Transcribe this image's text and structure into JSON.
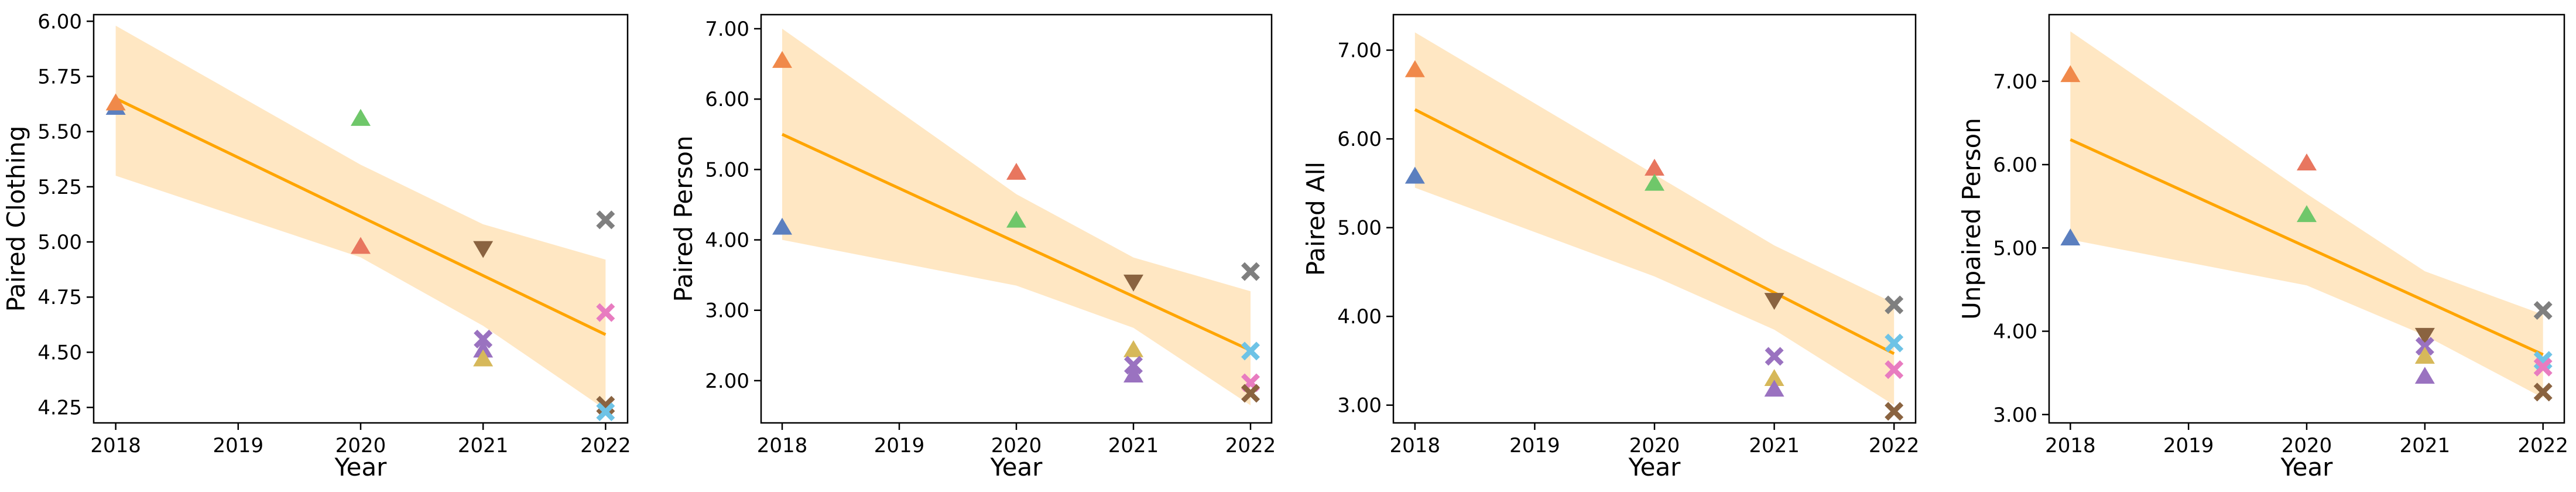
{
  "chart_data": [
    {
      "type": "scatter",
      "title": "",
      "xlabel": "Year",
      "ylabel": "Paired Clothing",
      "xlim": [
        2017.82,
        2022.18
      ],
      "ylim": [
        4.18,
        6.03
      ],
      "xticks": [
        "2018",
        "2019",
        "2020",
        "2021",
        "2022"
      ],
      "yticks": [
        "4.25",
        "4.50",
        "4.75",
        "5.00",
        "5.25",
        "5.50",
        "5.75",
        "6.00"
      ],
      "ytick_values": [
        4.25,
        4.5,
        4.75,
        5.0,
        5.25,
        5.5,
        5.75,
        6.0
      ],
      "trend_line": {
        "x": [
          2018,
          2022
        ],
        "y": [
          5.65,
          4.58
        ]
      },
      "confidence_band": {
        "x": [
          2018,
          2020,
          2021,
          2022
        ],
        "upper": [
          5.98,
          5.35,
          5.08,
          4.92
        ],
        "lower": [
          5.3,
          4.93,
          4.62,
          4.24
        ]
      },
      "points": [
        {
          "x": 2018,
          "y": 5.61,
          "marker": "triangle-up",
          "color": "#5b7fbf"
        },
        {
          "x": 2018,
          "y": 5.63,
          "marker": "triangle-up",
          "color": "#f0894a"
        },
        {
          "x": 2020,
          "y": 5.56,
          "marker": "triangle-up",
          "color": "#6fc76a"
        },
        {
          "x": 2020,
          "y": 4.98,
          "marker": "triangle-up",
          "color": "#e8765f"
        },
        {
          "x": 2021,
          "y": 4.97,
          "marker": "triangle-down",
          "color": "#8a6340"
        },
        {
          "x": 2021,
          "y": 4.56,
          "marker": "x",
          "color": "#9a72c0"
        },
        {
          "x": 2021,
          "y": 4.51,
          "marker": "triangle-up",
          "color": "#9a72c0"
        },
        {
          "x": 2021,
          "y": 4.47,
          "marker": "triangle-up",
          "color": "#d6b85a"
        },
        {
          "x": 2022,
          "y": 5.1,
          "marker": "x",
          "color": "#7f7f7f"
        },
        {
          "x": 2022,
          "y": 4.68,
          "marker": "x",
          "color": "#e87cc0"
        },
        {
          "x": 2022,
          "y": 4.26,
          "marker": "x",
          "color": "#8a6340"
        },
        {
          "x": 2022,
          "y": 4.23,
          "marker": "x",
          "color": "#6ec3e6"
        }
      ]
    },
    {
      "type": "scatter",
      "title": "",
      "xlabel": "Year",
      "ylabel": "Paired Person",
      "xlim": [
        2017.82,
        2022.18
      ],
      "ylim": [
        1.4,
        7.2
      ],
      "xticks": [
        "2018",
        "2019",
        "2020",
        "2021",
        "2022"
      ],
      "yticks": [
        "2.00",
        "3.00",
        "4.00",
        "5.00",
        "6.00",
        "7.00"
      ],
      "ytick_values": [
        2,
        3,
        4,
        5,
        6,
        7
      ],
      "trend_line": {
        "x": [
          2018,
          2022
        ],
        "y": [
          5.5,
          2.43
        ]
      },
      "confidence_band": {
        "x": [
          2018,
          2020,
          2021,
          2022
        ],
        "upper": [
          7.0,
          4.65,
          3.75,
          3.27
        ],
        "lower": [
          4.0,
          3.35,
          2.75,
          1.65
        ]
      },
      "points": [
        {
          "x": 2018,
          "y": 6.55,
          "marker": "triangle-up",
          "color": "#f0894a"
        },
        {
          "x": 2018,
          "y": 4.18,
          "marker": "triangle-up",
          "color": "#5b7fbf"
        },
        {
          "x": 2020,
          "y": 4.96,
          "marker": "triangle-up",
          "color": "#e8765f"
        },
        {
          "x": 2020,
          "y": 4.28,
          "marker": "triangle-up",
          "color": "#6fc76a"
        },
        {
          "x": 2021,
          "y": 3.4,
          "marker": "triangle-down",
          "color": "#8a6340"
        },
        {
          "x": 2021,
          "y": 2.44,
          "marker": "triangle-up",
          "color": "#d6b85a"
        },
        {
          "x": 2021,
          "y": 2.22,
          "marker": "x",
          "color": "#9a72c0"
        },
        {
          "x": 2021,
          "y": 2.08,
          "marker": "triangle-up",
          "color": "#9a72c0"
        },
        {
          "x": 2022,
          "y": 3.55,
          "marker": "x",
          "color": "#7f7f7f"
        },
        {
          "x": 2022,
          "y": 2.42,
          "marker": "x",
          "color": "#6ec3e6"
        },
        {
          "x": 2022,
          "y": 1.97,
          "marker": "x",
          "color": "#e87cc0"
        },
        {
          "x": 2022,
          "y": 1.82,
          "marker": "x",
          "color": "#8a6340"
        }
      ]
    },
    {
      "type": "scatter",
      "title": "",
      "xlabel": "Year",
      "ylabel": "Paired All",
      "xlim": [
        2017.82,
        2022.18
      ],
      "ylim": [
        2.8,
        7.4
      ],
      "xticks": [
        "2018",
        "2019",
        "2020",
        "2021",
        "2022"
      ],
      "yticks": [
        "3.00",
        "4.00",
        "5.00",
        "6.00",
        "7.00"
      ],
      "ytick_values": [
        3,
        4,
        5,
        6,
        7
      ],
      "trend_line": {
        "x": [
          2018,
          2022
        ],
        "y": [
          6.33,
          3.58
        ]
      },
      "confidence_band": {
        "x": [
          2018,
          2020,
          2021,
          2022
        ],
        "upper": [
          7.2,
          5.6,
          4.8,
          4.15
        ],
        "lower": [
          5.45,
          4.45,
          3.85,
          3.0
        ]
      },
      "points": [
        {
          "x": 2018,
          "y": 6.78,
          "marker": "triangle-up",
          "color": "#f0894a"
        },
        {
          "x": 2018,
          "y": 5.58,
          "marker": "triangle-up",
          "color": "#5b7fbf"
        },
        {
          "x": 2020,
          "y": 5.67,
          "marker": "triangle-up",
          "color": "#e8765f"
        },
        {
          "x": 2020,
          "y": 5.5,
          "marker": "triangle-up",
          "color": "#6fc76a"
        },
        {
          "x": 2021,
          "y": 4.18,
          "marker": "triangle-down",
          "color": "#8a6340"
        },
        {
          "x": 2021,
          "y": 3.55,
          "marker": "x",
          "color": "#9a72c0"
        },
        {
          "x": 2021,
          "y": 3.3,
          "marker": "triangle-up",
          "color": "#d6b85a"
        },
        {
          "x": 2021,
          "y": 3.18,
          "marker": "triangle-up",
          "color": "#9a72c0"
        },
        {
          "x": 2022,
          "y": 4.13,
          "marker": "x",
          "color": "#7f7f7f"
        },
        {
          "x": 2022,
          "y": 3.7,
          "marker": "x",
          "color": "#6ec3e6"
        },
        {
          "x": 2022,
          "y": 3.4,
          "marker": "x",
          "color": "#e87cc0"
        },
        {
          "x": 2022,
          "y": 2.93,
          "marker": "x",
          "color": "#8a6340"
        }
      ]
    },
    {
      "type": "scatter",
      "title": "",
      "xlabel": "Year",
      "ylabel": "Unpaired Person",
      "xlim": [
        2017.82,
        2022.18
      ],
      "ylim": [
        2.9,
        7.8
      ],
      "xticks": [
        "2018",
        "2019",
        "2020",
        "2021",
        "2022"
      ],
      "yticks": [
        "3.00",
        "4.00",
        "5.00",
        "6.00",
        "7.00"
      ],
      "ytick_values": [
        3,
        4,
        5,
        6,
        7
      ],
      "trend_line": {
        "x": [
          2018,
          2022
        ],
        "y": [
          6.3,
          3.72
        ]
      },
      "confidence_band": {
        "x": [
          2018,
          2020,
          2021,
          2022
        ],
        "upper": [
          7.6,
          5.65,
          4.72,
          4.2
        ],
        "lower": [
          5.1,
          4.55,
          3.95,
          3.2
        ]
      },
      "points": [
        {
          "x": 2018,
          "y": 7.08,
          "marker": "triangle-up",
          "color": "#f0894a"
        },
        {
          "x": 2018,
          "y": 5.12,
          "marker": "triangle-up",
          "color": "#5b7fbf"
        },
        {
          "x": 2020,
          "y": 6.02,
          "marker": "triangle-up",
          "color": "#e8765f"
        },
        {
          "x": 2020,
          "y": 5.4,
          "marker": "triangle-up",
          "color": "#6fc76a"
        },
        {
          "x": 2021,
          "y": 3.95,
          "marker": "triangle-down",
          "color": "#8a6340"
        },
        {
          "x": 2021,
          "y": 3.82,
          "marker": "x",
          "color": "#9a72c0"
        },
        {
          "x": 2021,
          "y": 3.7,
          "marker": "triangle-up",
          "color": "#d6b85a"
        },
        {
          "x": 2021,
          "y": 3.46,
          "marker": "triangle-up",
          "color": "#9a72c0"
        },
        {
          "x": 2022,
          "y": 4.25,
          "marker": "x",
          "color": "#7f7f7f"
        },
        {
          "x": 2022,
          "y": 3.65,
          "marker": "x",
          "color": "#6ec3e6"
        },
        {
          "x": 2022,
          "y": 3.57,
          "marker": "x",
          "color": "#e87cc0"
        },
        {
          "x": 2022,
          "y": 3.27,
          "marker": "x",
          "color": "#8a6340"
        }
      ]
    }
  ],
  "style": {
    "trend_color": "#ffa500",
    "band_color": "#ffe3b8"
  }
}
